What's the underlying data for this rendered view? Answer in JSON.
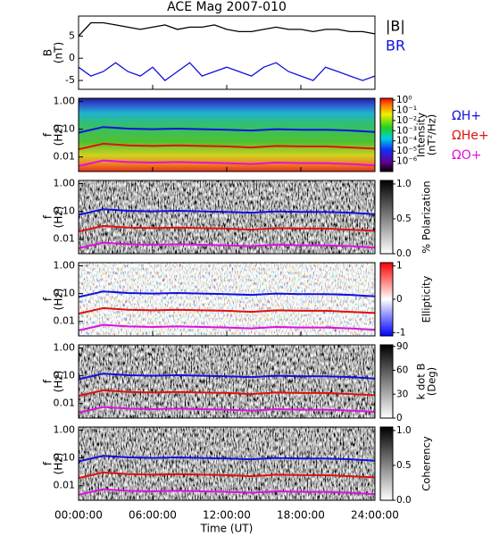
{
  "title": "ACE Mag 2007-010",
  "chart_data": [
    {
      "type": "line",
      "ylabel": [
        "B",
        "(nT)"
      ],
      "ylim": [
        -7,
        9.5
      ],
      "yticks": [
        -5,
        0,
        5
      ],
      "xlim": [
        0,
        24
      ],
      "x": [
        0,
        1,
        2,
        3,
        4,
        5,
        6,
        7,
        8,
        9,
        10,
        11,
        12,
        13,
        14,
        15,
        16,
        17,
        18,
        19,
        20,
        21,
        22,
        23,
        24
      ],
      "series": [
        {
          "name": "|B|",
          "color": "#000000",
          "values": [
            5,
            8,
            8,
            7.5,
            7,
            6.5,
            7,
            7.5,
            6.5,
            7,
            7,
            7.5,
            6.5,
            6,
            6,
            6.5,
            7,
            6.5,
            6.5,
            6,
            6.5,
            6.5,
            6,
            6,
            5.5
          ]
        },
        {
          "name": "BR",
          "color": "#1010e0",
          "values": [
            -2,
            -4,
            -3,
            -1,
            -3,
            -4,
            -2,
            -5,
            -3,
            -1,
            -4,
            -3,
            -2,
            -3,
            -4,
            -2,
            -1,
            -3,
            -4,
            -5,
            -2,
            -3,
            -4,
            -5,
            -4
          ]
        }
      ]
    },
    {
      "type": "spectrogram",
      "ylabel": [
        "f",
        "(Hz)"
      ],
      "ylim": [
        0.003,
        1.3
      ],
      "log": true,
      "xlim": [
        0,
        24
      ],
      "yticks": [
        {
          "value": 1,
          "label": "1.00"
        },
        {
          "value": 0.1,
          "label": "0.10"
        },
        {
          "value": 0.01,
          "label": "0.01"
        }
      ],
      "colorbar": {
        "label": [
          "Intensity",
          "(nT²/Hz)"
        ],
        "lim": [
          1e-07,
          1.5
        ],
        "log": true,
        "ticks": [
          {
            "value": 1,
            "label": "10⁰"
          },
          {
            "value": 0.1,
            "label": "10⁻¹"
          },
          {
            "value": 0.01,
            "label": "10⁻²"
          },
          {
            "value": 0.001,
            "label": "10⁻³"
          },
          {
            "value": 0.0001,
            "label": "10⁻⁴"
          },
          {
            "value": 1e-05,
            "label": "10⁻⁵"
          },
          {
            "value": 1e-06,
            "label": "10⁻⁶"
          }
        ]
      },
      "x": [
        0,
        2,
        4,
        6,
        8,
        10,
        12,
        14,
        16,
        18,
        20,
        22,
        24
      ],
      "series": [
        {
          "name": "ΩH+",
          "color": "#1010e0",
          "values": [
            0.075,
            0.12,
            0.105,
            0.1,
            0.105,
            0.1,
            0.095,
            0.09,
            0.1,
            0.095,
            0.095,
            0.09,
            0.08
          ]
        },
        {
          "name": "ΩHe+",
          "color": "#e01010",
          "values": [
            0.019,
            0.03,
            0.026,
            0.025,
            0.026,
            0.025,
            0.024,
            0.022,
            0.025,
            0.024,
            0.024,
            0.022,
            0.02
          ]
        },
        {
          "name": "ΩO+",
          "color": "#e010e0",
          "values": [
            0.0047,
            0.0075,
            0.0066,
            0.0063,
            0.0066,
            0.0063,
            0.006,
            0.0056,
            0.0063,
            0.006,
            0.006,
            0.0056,
            0.005
          ]
        }
      ]
    },
    {
      "type": "spectrogram",
      "ylabel": [
        "f",
        "(Hz)"
      ],
      "ylim": [
        0.003,
        1.3
      ],
      "log": true,
      "xlim": [
        0,
        24
      ],
      "yticks": [
        {
          "value": 1,
          "label": "1.00"
        },
        {
          "value": 0.1,
          "label": "0.10"
        },
        {
          "value": 0.01,
          "label": "0.01"
        }
      ],
      "colorbar": {
        "label": [
          "% Polarization"
        ],
        "lim": [
          0,
          1.05
        ],
        "ticks": [
          {
            "value": 0,
            "label": "0.0"
          },
          {
            "value": 0.5,
            "label": "0.5"
          },
          {
            "value": 1,
            "label": "1.0"
          }
        ]
      },
      "x": [
        0,
        2,
        4,
        6,
        8,
        10,
        12,
        14,
        16,
        18,
        20,
        22,
        24
      ],
      "series": [
        {
          "name": "ΩH+",
          "color": "#1010e0",
          "values": [
            0.075,
            0.12,
            0.105,
            0.1,
            0.105,
            0.1,
            0.095,
            0.09,
            0.1,
            0.095,
            0.095,
            0.09,
            0.08
          ]
        },
        {
          "name": "ΩHe+",
          "color": "#e01010",
          "values": [
            0.019,
            0.03,
            0.026,
            0.025,
            0.026,
            0.025,
            0.024,
            0.022,
            0.025,
            0.024,
            0.024,
            0.022,
            0.02
          ]
        },
        {
          "name": "ΩO+",
          "color": "#e010e0",
          "values": [
            0.0047,
            0.0075,
            0.0066,
            0.0063,
            0.0066,
            0.0063,
            0.006,
            0.0056,
            0.0063,
            0.006,
            0.006,
            0.0056,
            0.005
          ]
        }
      ]
    },
    {
      "type": "spectrogram",
      "ylabel": [
        "f",
        "(Hz)"
      ],
      "ylim": [
        0.003,
        1.3
      ],
      "log": true,
      "xlim": [
        0,
        24
      ],
      "yticks": [
        {
          "value": 1,
          "label": "1.00"
        },
        {
          "value": 0.1,
          "label": "0.10"
        },
        {
          "value": 0.01,
          "label": "0.01"
        }
      ],
      "colorbar": {
        "label": [
          "Ellipticity"
        ],
        "lim": [
          -1.1,
          1.1
        ],
        "ticks": [
          1,
          0,
          -1
        ]
      },
      "x": [
        0,
        2,
        4,
        6,
        8,
        10,
        12,
        14,
        16,
        18,
        20,
        22,
        24
      ],
      "series": [
        {
          "name": "ΩH+",
          "color": "#1010e0",
          "values": [
            0.075,
            0.12,
            0.105,
            0.1,
            0.105,
            0.1,
            0.095,
            0.09,
            0.1,
            0.095,
            0.095,
            0.09,
            0.08
          ]
        },
        {
          "name": "ΩHe+",
          "color": "#e01010",
          "values": [
            0.019,
            0.03,
            0.026,
            0.025,
            0.026,
            0.025,
            0.024,
            0.022,
            0.025,
            0.024,
            0.024,
            0.022,
            0.02
          ]
        },
        {
          "name": "ΩO+",
          "color": "#e010e0",
          "values": [
            0.0047,
            0.0075,
            0.0066,
            0.0063,
            0.0066,
            0.0063,
            0.006,
            0.0056,
            0.0063,
            0.006,
            0.006,
            0.0056,
            0.005
          ]
        }
      ]
    },
    {
      "type": "spectrogram",
      "ylabel": [
        "f",
        "(Hz)"
      ],
      "ylim": [
        0.003,
        1.3
      ],
      "log": true,
      "xlim": [
        0,
        24
      ],
      "yticks": [
        {
          "value": 1,
          "label": "1.00"
        },
        {
          "value": 0.1,
          "label": "0.10"
        },
        {
          "value": 0.01,
          "label": "0.01"
        }
      ],
      "colorbar": {
        "label": [
          "k dot B",
          "(Deg)"
        ],
        "lim": [
          0,
          92
        ],
        "ticks": [
          90,
          60,
          30,
          0
        ]
      },
      "x": [
        0,
        2,
        4,
        6,
        8,
        10,
        12,
        14,
        16,
        18,
        20,
        22,
        24
      ],
      "series": [
        {
          "name": "ΩH+",
          "color": "#1010e0",
          "values": [
            0.075,
            0.12,
            0.105,
            0.1,
            0.105,
            0.1,
            0.095,
            0.09,
            0.1,
            0.095,
            0.095,
            0.09,
            0.08
          ]
        },
        {
          "name": "ΩHe+",
          "color": "#e01010",
          "values": [
            0.019,
            0.03,
            0.026,
            0.025,
            0.026,
            0.025,
            0.024,
            0.022,
            0.025,
            0.024,
            0.024,
            0.022,
            0.02
          ]
        },
        {
          "name": "ΩO+",
          "color": "#e010e0",
          "values": [
            0.0047,
            0.0075,
            0.0066,
            0.0063,
            0.0066,
            0.0063,
            0.006,
            0.0056,
            0.0063,
            0.006,
            0.006,
            0.0056,
            0.005
          ]
        }
      ]
    },
    {
      "type": "spectrogram",
      "ylabel": [
        "f",
        "(Hz)"
      ],
      "ylim": [
        0.003,
        1.3
      ],
      "log": true,
      "xlim": [
        0,
        24
      ],
      "yticks": [
        {
          "value": 1,
          "label": "1.00"
        },
        {
          "value": 0.1,
          "label": "0.10"
        },
        {
          "value": 0.01,
          "label": "0.01"
        }
      ],
      "colorbar": {
        "label": [
          "Coherency"
        ],
        "lim": [
          0,
          1.05
        ],
        "ticks": [
          {
            "value": 1,
            "label": "1.0"
          },
          {
            "value": 0.5,
            "label": "0.5"
          },
          {
            "value": 0,
            "label": "0.0"
          }
        ]
      },
      "x": [
        0,
        2,
        4,
        6,
        8,
        10,
        12,
        14,
        16,
        18,
        20,
        22,
        24
      ],
      "series": [
        {
          "name": "ΩH+",
          "color": "#1010e0",
          "values": [
            0.075,
            0.12,
            0.105,
            0.1,
            0.105,
            0.1,
            0.095,
            0.09,
            0.1,
            0.095,
            0.095,
            0.09,
            0.08
          ]
        },
        {
          "name": "ΩHe+",
          "color": "#e01010",
          "values": [
            0.019,
            0.03,
            0.026,
            0.025,
            0.026,
            0.025,
            0.024,
            0.022,
            0.025,
            0.024,
            0.024,
            0.022,
            0.02
          ]
        },
        {
          "name": "ΩO+",
          "color": "#e010e0",
          "values": [
            0.0047,
            0.0075,
            0.0066,
            0.0063,
            0.0066,
            0.0063,
            0.006,
            0.0056,
            0.0063,
            0.006,
            0.006,
            0.0056,
            0.005
          ]
        }
      ],
      "xlabel": "Time (UT)",
      "xticks": [
        {
          "value": 0,
          "label": "00:00:00"
        },
        {
          "value": 6,
          "label": "06:00:00"
        },
        {
          "value": 12,
          "label": "12:00:00"
        },
        {
          "value": 18,
          "label": "18:00:00"
        },
        {
          "value": 24,
          "label": "24:00:00"
        }
      ]
    }
  ]
}
